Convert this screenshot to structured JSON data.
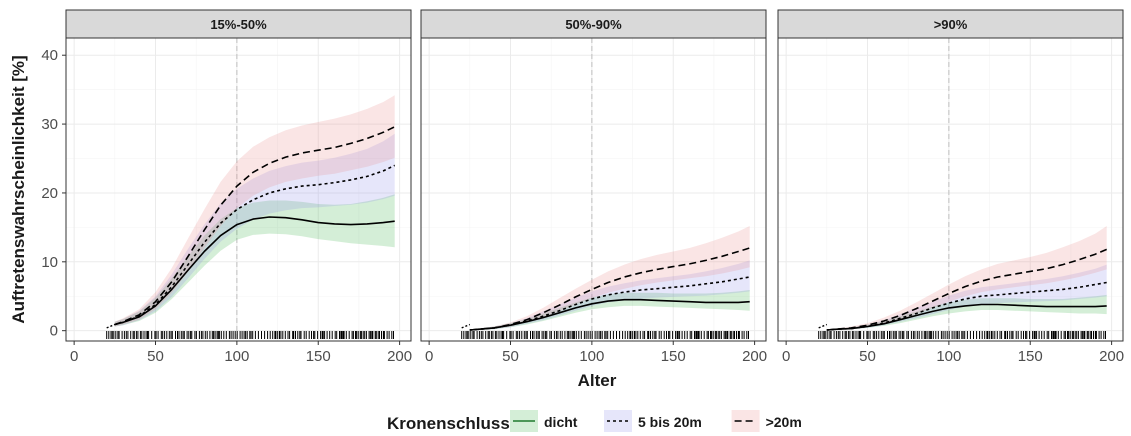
{
  "chart_data": {
    "type": "line",
    "facet_by": "Baumanteil",
    "facets": [
      "15%-50%",
      "50%-90%",
      ">90%"
    ],
    "xlabel": "Alter",
    "ylabel": "Auftretenswahrscheinlichkeit [%]",
    "xlim": [
      -5,
      207
    ],
    "ylim": [
      -1.5,
      42.5
    ],
    "xticks": [
      0,
      50,
      100,
      150,
      200
    ],
    "yticks": [
      0,
      10,
      20,
      30,
      40
    ],
    "vline_x": 100,
    "grid": true,
    "legend": {
      "title": "Kronenschluss",
      "position": "bottom",
      "entries": [
        {
          "label": "dicht",
          "color": "#3db34a",
          "linetype": "solid"
        },
        {
          "label": "5 bis 20m",
          "color": "#8c8ce6",
          "linetype": "dotted"
        },
        {
          "label": ">20m",
          "color": "#e88a8a",
          "linetype": "dashed"
        }
      ]
    },
    "x": [
      25,
      30,
      40,
      50,
      60,
      70,
      80,
      90,
      100,
      110,
      120,
      130,
      140,
      150,
      160,
      170,
      180,
      190,
      197
    ],
    "panels": [
      {
        "facet": "15%-50%",
        "series": [
          {
            "name": "dicht",
            "values": [
              0.9,
              1.2,
              2.0,
              3.6,
              6.0,
              8.8,
              11.5,
              13.8,
              15.4,
              16.2,
              16.5,
              16.4,
              16.1,
              15.7,
              15.5,
              15.4,
              15.5,
              15.7,
              15.9
            ],
            "lower": [
              0.6,
              0.8,
              1.4,
              2.6,
              4.6,
              7.0,
              9.4,
              11.6,
              13.2,
              13.9,
              14.1,
              14.0,
              13.7,
              13.3,
              13.0,
              12.7,
              12.5,
              12.3,
              12.1
            ],
            "upper": [
              1.3,
              1.7,
              2.8,
              4.8,
              7.6,
              10.8,
              13.8,
              16.2,
              17.8,
              18.6,
              18.9,
              18.9,
              18.7,
              18.4,
              18.3,
              18.4,
              18.8,
              19.3,
              19.8
            ]
          },
          {
            "name": "5 bis 20m",
            "values": [
              0.9,
              1.2,
              2.1,
              3.8,
              6.4,
              9.6,
              12.8,
              15.6,
              17.6,
              19.0,
              20.0,
              20.6,
              21.0,
              21.2,
              21.5,
              21.9,
              22.4,
              23.2,
              24.0
            ],
            "lower": [
              0.6,
              0.8,
              1.5,
              2.8,
              4.9,
              7.6,
              10.4,
              12.9,
              14.8,
              16.1,
              17.0,
              17.5,
              17.8,
              17.9,
              18.1,
              18.3,
              18.6,
              19.1,
              19.6
            ],
            "upper": [
              1.3,
              1.7,
              2.9,
              5.0,
              8.2,
              11.9,
              15.4,
              18.5,
              20.6,
              22.1,
              23.2,
              23.9,
              24.4,
              24.7,
              25.1,
              25.7,
              26.4,
              27.5,
              28.6
            ]
          },
          {
            "name": ">20m",
            "values": [
              0.9,
              1.3,
              2.3,
              4.2,
              7.1,
              10.8,
              14.6,
              18.2,
              21.0,
              23.0,
              24.3,
              25.2,
              25.8,
              26.2,
              26.6,
              27.2,
              27.9,
              28.8,
              29.6
            ],
            "lower": [
              0.6,
              0.9,
              1.6,
              3.1,
              5.5,
              8.6,
              12.0,
              15.2,
              17.8,
              19.6,
              20.8,
              21.6,
              22.1,
              22.5,
              22.8,
              23.3,
              23.8,
              24.5,
              25.1
            ],
            "upper": [
              1.3,
              1.8,
              3.1,
              5.6,
              9.1,
              13.4,
              17.6,
              21.6,
              24.6,
              26.7,
              28.1,
              29.1,
              29.8,
              30.3,
              30.8,
              31.4,
              32.2,
              33.2,
              34.2
            ]
          }
        ]
      },
      {
        "facet": "50%-90%",
        "series": [
          {
            "name": "dicht",
            "values": [
              0.1,
              0.2,
              0.4,
              0.8,
              1.3,
              1.9,
              2.6,
              3.3,
              3.9,
              4.3,
              4.5,
              4.5,
              4.4,
              4.3,
              4.2,
              4.1,
              4.1,
              4.1,
              4.2
            ],
            "lower": [
              0.0,
              0.1,
              0.2,
              0.5,
              0.9,
              1.4,
              2.0,
              2.6,
              3.1,
              3.4,
              3.6,
              3.6,
              3.5,
              3.4,
              3.3,
              3.2,
              3.1,
              3.0,
              2.9
            ],
            "upper": [
              0.2,
              0.3,
              0.6,
              1.1,
              1.7,
              2.5,
              3.3,
              4.1,
              4.8,
              5.3,
              5.5,
              5.5,
              5.5,
              5.4,
              5.4,
              5.4,
              5.5,
              5.7,
              5.9
            ]
          },
          {
            "name": "5 bis 20m",
            "values": [
              0.1,
              0.2,
              0.4,
              0.8,
              1.4,
              2.1,
              2.9,
              3.8,
              4.6,
              5.2,
              5.6,
              5.9,
              6.1,
              6.3,
              6.5,
              6.8,
              7.1,
              7.5,
              7.8
            ],
            "lower": [
              0.0,
              0.1,
              0.2,
              0.5,
              1.0,
              1.5,
              2.2,
              2.9,
              3.6,
              4.1,
              4.4,
              4.6,
              4.8,
              4.9,
              5.0,
              5.1,
              5.3,
              5.5,
              5.7
            ],
            "upper": [
              0.2,
              0.3,
              0.6,
              1.1,
              1.8,
              2.8,
              3.8,
              4.8,
              5.7,
              6.4,
              6.9,
              7.3,
              7.6,
              7.9,
              8.2,
              8.6,
              9.1,
              9.7,
              10.2
            ]
          },
          {
            "name": ">20m",
            "values": [
              0.1,
              0.2,
              0.4,
              0.9,
              1.6,
              2.6,
              3.7,
              4.9,
              6.0,
              7.0,
              7.8,
              8.4,
              8.9,
              9.3,
              9.7,
              10.2,
              10.8,
              11.5,
              12.0
            ],
            "lower": [
              0.0,
              0.1,
              0.3,
              0.6,
              1.2,
              1.9,
              2.8,
              3.8,
              4.7,
              5.5,
              6.1,
              6.6,
              7.0,
              7.3,
              7.6,
              7.9,
              8.3,
              8.8,
              9.2
            ],
            "upper": [
              0.2,
              0.3,
              0.6,
              1.2,
              2.1,
              3.3,
              4.7,
              6.1,
              7.4,
              8.6,
              9.6,
              10.4,
              11.0,
              11.5,
              12.0,
              12.7,
              13.5,
              14.4,
              15.2
            ]
          }
        ]
      },
      {
        "facet": ">90%",
        "series": [
          {
            "name": "dicht",
            "values": [
              0.1,
              0.2,
              0.3,
              0.6,
              1.0,
              1.6,
              2.2,
              2.8,
              3.3,
              3.6,
              3.8,
              3.8,
              3.7,
              3.6,
              3.5,
              3.5,
              3.5,
              3.5,
              3.6
            ],
            "lower": [
              0.0,
              0.1,
              0.2,
              0.4,
              0.7,
              1.1,
              1.6,
              2.1,
              2.5,
              2.8,
              3.0,
              3.0,
              2.9,
              2.8,
              2.7,
              2.6,
              2.5,
              2.5,
              2.4
            ],
            "upper": [
              0.2,
              0.3,
              0.5,
              0.9,
              1.4,
              2.1,
              2.8,
              3.5,
              4.1,
              4.5,
              4.7,
              4.7,
              4.7,
              4.6,
              4.6,
              4.6,
              4.8,
              5.0,
              5.2
            ]
          },
          {
            "name": "5 bis 20m",
            "values": [
              0.1,
              0.2,
              0.3,
              0.6,
              1.1,
              1.8,
              2.5,
              3.3,
              4.0,
              4.6,
              5.0,
              5.2,
              5.4,
              5.6,
              5.8,
              6.0,
              6.3,
              6.7,
              7.0
            ],
            "lower": [
              0.0,
              0.1,
              0.2,
              0.4,
              0.8,
              1.3,
              1.8,
              2.4,
              3.0,
              3.5,
              3.8,
              4.0,
              4.1,
              4.2,
              4.3,
              4.4,
              4.6,
              4.8,
              5.0
            ],
            "upper": [
              0.2,
              0.3,
              0.5,
              0.9,
              1.5,
              2.4,
              3.3,
              4.2,
              5.1,
              5.8,
              6.3,
              6.6,
              6.9,
              7.2,
              7.5,
              7.9,
              8.4,
              9.0,
              9.6
            ]
          },
          {
            "name": ">20m",
            "values": [
              0.1,
              0.2,
              0.4,
              0.8,
              1.4,
              2.2,
              3.2,
              4.3,
              5.4,
              6.4,
              7.2,
              7.8,
              8.2,
              8.6,
              9.0,
              9.6,
              10.3,
              11.1,
              11.8
            ],
            "lower": [
              0.0,
              0.1,
              0.2,
              0.5,
              1.0,
              1.6,
              2.4,
              3.3,
              4.2,
              5.0,
              5.6,
              6.0,
              6.3,
              6.6,
              6.9,
              7.3,
              7.8,
              8.4,
              8.9
            ],
            "upper": [
              0.2,
              0.3,
              0.6,
              1.1,
              1.9,
              2.9,
              4.1,
              5.4,
              6.7,
              7.9,
              8.9,
              9.7,
              10.2,
              10.7,
              11.3,
              12.1,
              13.0,
              14.1,
              15.2
            ]
          }
        ]
      }
    ]
  }
}
